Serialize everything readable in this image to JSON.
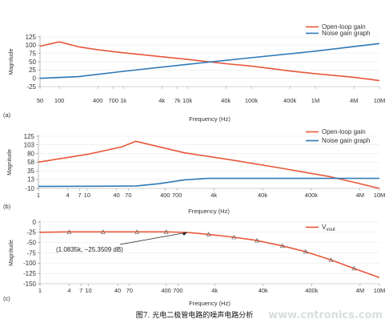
{
  "caption": "图7. 光电二极管电路的噪声电路分析",
  "watermark": "www.cntronics.com",
  "chart_data": [
    {
      "type": "line",
      "panel_label": "(a)",
      "xlabel": "Frequency (Hz)",
      "ylabel": "Magnitude",
      "xscale": "log",
      "xlim": [
        50,
        10000000
      ],
      "ylim": [
        -25,
        125
      ],
      "x_tick_labels": [
        "50",
        "100",
        "400",
        "700",
        "1k",
        "4k",
        "7k",
        "10k",
        "40k",
        "100k",
        "400k",
        "1M",
        "4M",
        "10M"
      ],
      "x_tick_values": [
        50,
        100,
        400,
        700,
        1000,
        4000,
        7000,
        10000,
        40000,
        100000,
        400000,
        1000000,
        4000000,
        10000000
      ],
      "y_ticks": [
        125,
        100,
        75,
        50,
        25,
        0,
        -25
      ],
      "legend_position": "top-right",
      "series": [
        {
          "name": "Open-loop gain",
          "color": "#e8573a",
          "x": [
            50,
            100,
            200,
            400,
            1000,
            4000,
            10000,
            40000,
            100000,
            400000,
            1000000,
            4000000,
            10000000
          ],
          "y": [
            97,
            110,
            95,
            86,
            77,
            65,
            57,
            44,
            37,
            22,
            14,
            3,
            -7
          ]
        },
        {
          "name": "Noise gain graph",
          "color": "#2f79b5",
          "x": [
            50,
            200,
            1000,
            10000,
            100000,
            1000000,
            10000000
          ],
          "y": [
            0,
            5,
            21,
            42,
            62,
            82,
            105
          ]
        }
      ]
    },
    {
      "type": "line",
      "panel_label": "(b)",
      "xlabel": "Frequency (Hz)",
      "ylabel": "Magnitude",
      "xscale": "log",
      "xlim": [
        1,
        10000000
      ],
      "ylim": [
        -10,
        125
      ],
      "x_tick_labels": [
        "1",
        "4",
        "7",
        "10",
        "40",
        "70",
        "400",
        "700",
        "4k",
        "40k",
        "400k",
        "4M",
        "10M"
      ],
      "x_tick_values": [
        1,
        4,
        7,
        10,
        40,
        70,
        400,
        700,
        4000,
        40000,
        400000,
        4000000,
        10000000
      ],
      "y_ticks": [
        125,
        103,
        80,
        58,
        35,
        13,
        -10
      ],
      "legend_position": "top-right",
      "series": [
        {
          "name": "Open-loop gain",
          "color": "#e8573a",
          "x": [
            1,
            10,
            50,
            100,
            1000,
            10000,
            100000,
            1000000,
            10000000
          ],
          "y": [
            58,
            78,
            97,
            112,
            82,
            63,
            42,
            20,
            -10
          ]
        },
        {
          "name": "Noise gain graph",
          "color": "#2f79b5",
          "x": [
            1,
            100,
            300,
            1000,
            3000,
            10000000
          ],
          "y": [
            -5,
            -4,
            2,
            12,
            16,
            16
          ]
        }
      ]
    },
    {
      "type": "line",
      "panel_label": "(c)",
      "xlabel": "Frequency (Hz)",
      "ylabel": "Magnitude",
      "xscale": "log",
      "xlim": [
        1,
        10000000
      ],
      "ylim": [
        -150,
        0
      ],
      "x_tick_labels": [
        "1",
        "4",
        "7",
        "10",
        "40",
        "70",
        "400",
        "700",
        "4k",
        "40k",
        "400k",
        "4M",
        "10M"
      ],
      "x_tick_values": [
        1,
        4,
        7,
        10,
        40,
        70,
        400,
        700,
        4000,
        40000,
        400000,
        4000000,
        10000000
      ],
      "y_ticks": [
        0,
        -25,
        -50,
        -75,
        -100,
        -125,
        -150
      ],
      "legend_position": "top-right",
      "annotation": {
        "text": "(1.0835k, −25.3509 dB)",
        "x": 1083.5,
        "y": -25.3509
      },
      "series": [
        {
          "name": "V_vout",
          "color": "#e8573a",
          "x": [
            1,
            4,
            20,
            100,
            400,
            1083.5,
            3000,
            10000,
            30000,
            100000,
            300000,
            1000000,
            3000000,
            10000000
          ],
          "y": [
            -25,
            -24,
            -24,
            -24,
            -24,
            -25.35,
            -30,
            -37,
            -45,
            -58,
            -72,
            -92,
            -113,
            -135
          ]
        }
      ]
    }
  ]
}
